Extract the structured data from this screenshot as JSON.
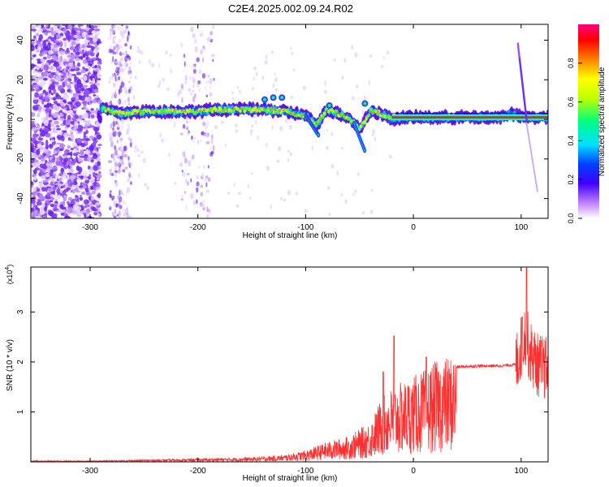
{
  "page_title": "C2E4.2025.002.09.24.R02",
  "chart_data": [
    {
      "type": "heatmap",
      "title": "C2E4.2025.002.09.24.R02",
      "xlabel": "Height of straight line (km)",
      "ylabel": "Frequency (Hz)",
      "xlim": [
        -355,
        125
      ],
      "ylim": [
        -50,
        48
      ],
      "x_ticks": [
        -300,
        -200,
        -100,
        0,
        100
      ],
      "y_ticks": [
        -40,
        -20,
        0,
        20,
        40
      ],
      "grid": false,
      "colorbar": {
        "label": "Normalized spectral amplitude",
        "range": [
          0,
          1
        ],
        "ticks": [
          0.0,
          0.2,
          0.4,
          0.6,
          0.8
        ],
        "colormap": [
          "#ff0080",
          "#ff0000",
          "#ff8000",
          "#ffff00",
          "#00ff00",
          "#00ffff",
          "#0080ff",
          "#0000ff",
          "#8000ff",
          "#ffffff"
        ]
      },
      "main_band": [
        {
          "x": -290,
          "y": 6
        },
        {
          "x": -280,
          "y": 4
        },
        {
          "x": -270,
          "y": 3
        },
        {
          "x": -250,
          "y": 4
        },
        {
          "x": -220,
          "y": 4
        },
        {
          "x": -200,
          "y": 4
        },
        {
          "x": -180,
          "y": 5
        },
        {
          "x": -160,
          "y": 5
        },
        {
          "x": -140,
          "y": 5
        },
        {
          "x": -120,
          "y": 4
        },
        {
          "x": -100,
          "y": 2
        },
        {
          "x": -90,
          "y": -3
        },
        {
          "x": -80,
          "y": 5
        },
        {
          "x": -70,
          "y": 3
        },
        {
          "x": -60,
          "y": 1
        },
        {
          "x": -50,
          "y": -5
        },
        {
          "x": -40,
          "y": 4
        },
        {
          "x": -30,
          "y": 3
        },
        {
          "x": -20,
          "y": 0
        },
        {
          "x": -10,
          "y": 1
        },
        {
          "x": 0,
          "y": 1
        },
        {
          "x": 20,
          "y": 1
        },
        {
          "x": 50,
          "y": 1
        },
        {
          "x": 80,
          "y": 1
        },
        {
          "x": 90,
          "y": 3
        },
        {
          "x": 100,
          "y": 1
        },
        {
          "x": 110,
          "y": 1
        },
        {
          "x": 125,
          "y": 1
        }
      ]
    },
    {
      "type": "line",
      "xlabel": "Height of straight line (km)",
      "ylabel": "SNR (10 * v/v)",
      "y_multiplier": "(x10^4)",
      "xlim": [
        -355,
        125
      ],
      "ylim": [
        0,
        3.9
      ],
      "x_ticks": [
        -300,
        -200,
        -100,
        0,
        100
      ],
      "y_ticks": [
        1,
        2,
        3
      ],
      "grid": false,
      "color": "#ff3030",
      "envelope": [
        {
          "x": -355,
          "y": 0.02
        },
        {
          "x": -300,
          "y": 0.02
        },
        {
          "x": -250,
          "y": 0.04
        },
        {
          "x": -200,
          "y": 0.06
        },
        {
          "x": -150,
          "y": 0.08
        },
        {
          "x": -120,
          "y": 0.12
        },
        {
          "x": -100,
          "y": 0.2
        },
        {
          "x": -80,
          "y": 0.35
        },
        {
          "x": -60,
          "y": 0.45
        },
        {
          "x": -40,
          "y": 0.7
        },
        {
          "x": -30,
          "y": 1.1
        },
        {
          "x": -20,
          "y": 1.3
        },
        {
          "x": -10,
          "y": 1.4
        },
        {
          "x": 0,
          "y": 1.5
        },
        {
          "x": 10,
          "y": 1.6
        },
        {
          "x": 20,
          "y": 1.75
        },
        {
          "x": 40,
          "y": 1.9
        },
        {
          "x": 60,
          "y": 1.92
        },
        {
          "x": 80,
          "y": 1.92
        },
        {
          "x": 95,
          "y": 1.95
        },
        {
          "x": 100,
          "y": 2.3
        },
        {
          "x": 104,
          "y": 2.6
        },
        {
          "x": 108,
          "y": 2.2
        },
        {
          "x": 115,
          "y": 1.95
        },
        {
          "x": 125,
          "y": 1.85
        }
      ],
      "spikes": [
        {
          "x": -18,
          "y": 2.52
        },
        {
          "x": -28,
          "y": 1.8
        },
        {
          "x": 12,
          "y": 2.1
        },
        {
          "x": 105,
          "y": 3.9
        },
        {
          "x": 101,
          "y": 2.9
        }
      ]
    }
  ]
}
